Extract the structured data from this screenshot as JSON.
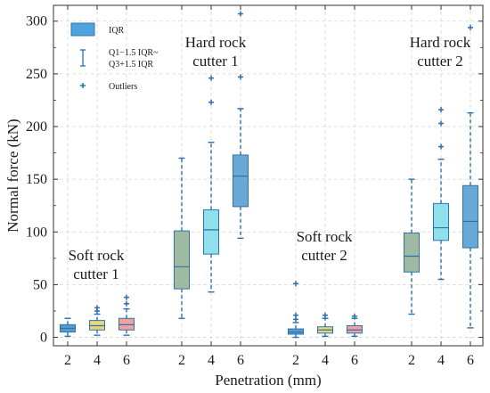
{
  "chart_data": {
    "type": "box",
    "xlabel": "Penetration (mm)",
    "ylabel": "Normal force (kN)",
    "ylim": [
      -8,
      315
    ],
    "yticks": [
      0,
      50,
      100,
      150,
      200,
      250,
      300
    ],
    "grid": true,
    "legend": {
      "placement": "top-left",
      "entries": [
        {
          "key": "iqr",
          "label": "IQR"
        },
        {
          "key": "whisker",
          "label": "Q1−1.5 IQR~",
          "label2": "Q3+1.5 IQR"
        },
        {
          "key": "outlier",
          "label": "Outliers"
        }
      ]
    },
    "colors": {
      "soft": [
        "#5a9bd5",
        "#e8d77a",
        "#f0a29e"
      ],
      "hard": [
        "#9fb9a3",
        "#8fe0ea",
        "#6aa8d8"
      ],
      "edge": "#2f74a8",
      "whisker": "#2a6fb0",
      "outlier": "#2a6fb0",
      "legend_fill": "#4ea3de"
    },
    "groups": [
      {
        "label": [
          "Soft rock",
          "cutter 1"
        ],
        "kind": "soft"
      },
      {
        "label": [
          "Hard rock",
          "cutter 1"
        ],
        "kind": "hard"
      },
      {
        "label": [
          "Soft rock",
          "cutter 2"
        ],
        "kind": "soft"
      },
      {
        "label": [
          "Hard rock",
          "cutter 2"
        ],
        "kind": "hard"
      }
    ],
    "boxes": [
      {
        "group": 0,
        "x": "2",
        "lower": 1,
        "q1": 5,
        "median": 8.5,
        "q3": 12,
        "upper": 18,
        "outliers": []
      },
      {
        "group": 0,
        "x": "4",
        "lower": 2,
        "q1": 7,
        "median": 11,
        "q3": 16,
        "upper": 22,
        "outliers": [
          25,
          28
        ]
      },
      {
        "group": 0,
        "x": "6",
        "lower": 2,
        "q1": 7,
        "median": 12,
        "q3": 18,
        "upper": 27,
        "outliers": [
          32,
          38
        ]
      },
      {
        "group": 1,
        "x": "2",
        "lower": 18,
        "q1": 46,
        "median": 67,
        "q3": 101,
        "upper": 170,
        "outliers": []
      },
      {
        "group": 1,
        "x": "4",
        "lower": 43,
        "q1": 79,
        "median": 102,
        "q3": 121,
        "upper": 185,
        "outliers": [
          223,
          246
        ]
      },
      {
        "group": 1,
        "x": "6",
        "lower": 94,
        "q1": 124,
        "median": 153,
        "q3": 173,
        "upper": 217,
        "outliers": [
          247,
          307
        ]
      },
      {
        "group": 2,
        "x": "2",
        "lower": 0,
        "q1": 3,
        "median": 5,
        "q3": 8,
        "upper": 14,
        "outliers": [
          17,
          21,
          51
        ]
      },
      {
        "group": 2,
        "x": "4",
        "lower": 1,
        "q1": 4,
        "median": 7,
        "q3": 10,
        "upper": 18,
        "outliers": [
          21
        ]
      },
      {
        "group": 2,
        "x": "6",
        "lower": 1,
        "q1": 4,
        "median": 7,
        "q3": 11,
        "upper": 18,
        "outliers": [
          20
        ]
      },
      {
        "group": 3,
        "x": "2",
        "lower": 22,
        "q1": 62,
        "median": 77,
        "q3": 99,
        "upper": 150,
        "outliers": []
      },
      {
        "group": 3,
        "x": "4",
        "lower": 55,
        "q1": 92,
        "median": 104,
        "q3": 127,
        "upper": 169,
        "outliers": [
          181,
          203,
          216
        ]
      },
      {
        "group": 3,
        "x": "6",
        "lower": 9,
        "q1": 85,
        "median": 110,
        "q3": 144,
        "upper": 213,
        "outliers": [
          294
        ]
      }
    ]
  }
}
